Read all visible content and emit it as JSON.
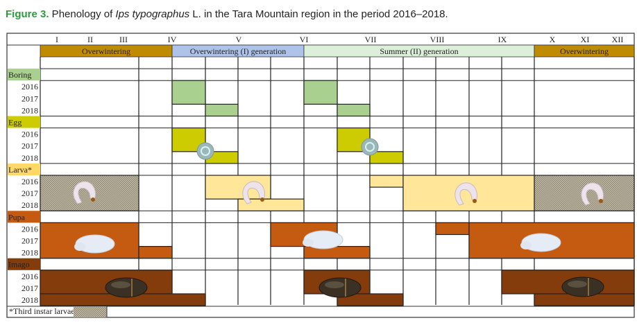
{
  "title": {
    "figure": "Figure 3.",
    "pre": " Phenology of ",
    "species": "Ips typographus",
    "post": " L. in the Tara Mountain region in the period 2016–2018."
  },
  "months": [
    "I",
    "II",
    "III",
    "IV",
    "V",
    "VI",
    "VII",
    "VIII",
    "IX",
    "X",
    "XI",
    "XII"
  ],
  "periods": [
    {
      "label": "Overwintering",
      "color": "#bf8b00"
    },
    {
      "label": "Overwintering (I) generation",
      "color": "#adc3e9"
    },
    {
      "label": "Summer (II) generation",
      "color": "#dcefd9"
    },
    {
      "label": "Overwintering",
      "color": "#bf8b00"
    }
  ],
  "stages": [
    {
      "label": "Boring",
      "color": "#a9d08e"
    },
    {
      "label": "Egg",
      "color": "#cccc00"
    },
    {
      "label": "Larva*",
      "color": "#ffd966",
      "fill": "#ffe699"
    },
    {
      "label": "Pupa",
      "color": "#c55a11"
    },
    {
      "label": "Imago",
      "color": "#843c0c"
    }
  ],
  "years": [
    "2016",
    "2017",
    "2018"
  ],
  "footnote": "*Third instar larvae"
}
